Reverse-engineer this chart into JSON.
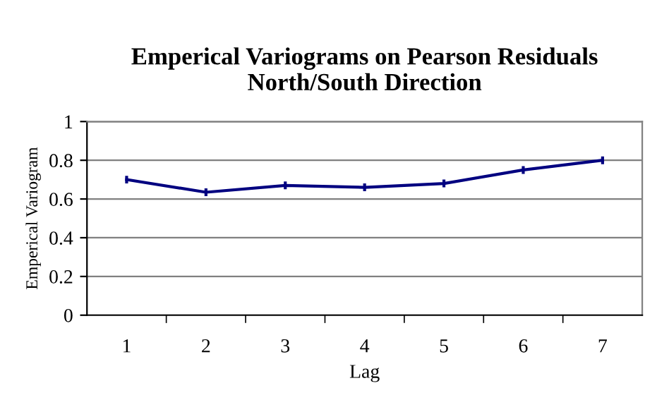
{
  "chart_data": {
    "type": "line",
    "title": "Emperical Variograms on Pearson Residuals\nNorth/South Direction",
    "xlabel": "Lag",
    "ylabel": "Emperical Variogram",
    "categories": [
      "1",
      "2",
      "3",
      "4",
      "5",
      "6",
      "7"
    ],
    "series": [
      {
        "color": "#000080",
        "values": [
          0.7,
          0.635,
          0.67,
          0.66,
          0.68,
          0.75,
          0.8
        ],
        "errors": [
          0.02,
          0.02,
          0.02,
          0.02,
          0.02,
          0.02,
          0.02
        ]
      }
    ],
    "ylim": [
      0,
      1
    ],
    "yticks": [
      0,
      0.2,
      0.4,
      0.6,
      0.8,
      1
    ],
    "grid": "y",
    "marker": "none",
    "line_style": "solid"
  }
}
